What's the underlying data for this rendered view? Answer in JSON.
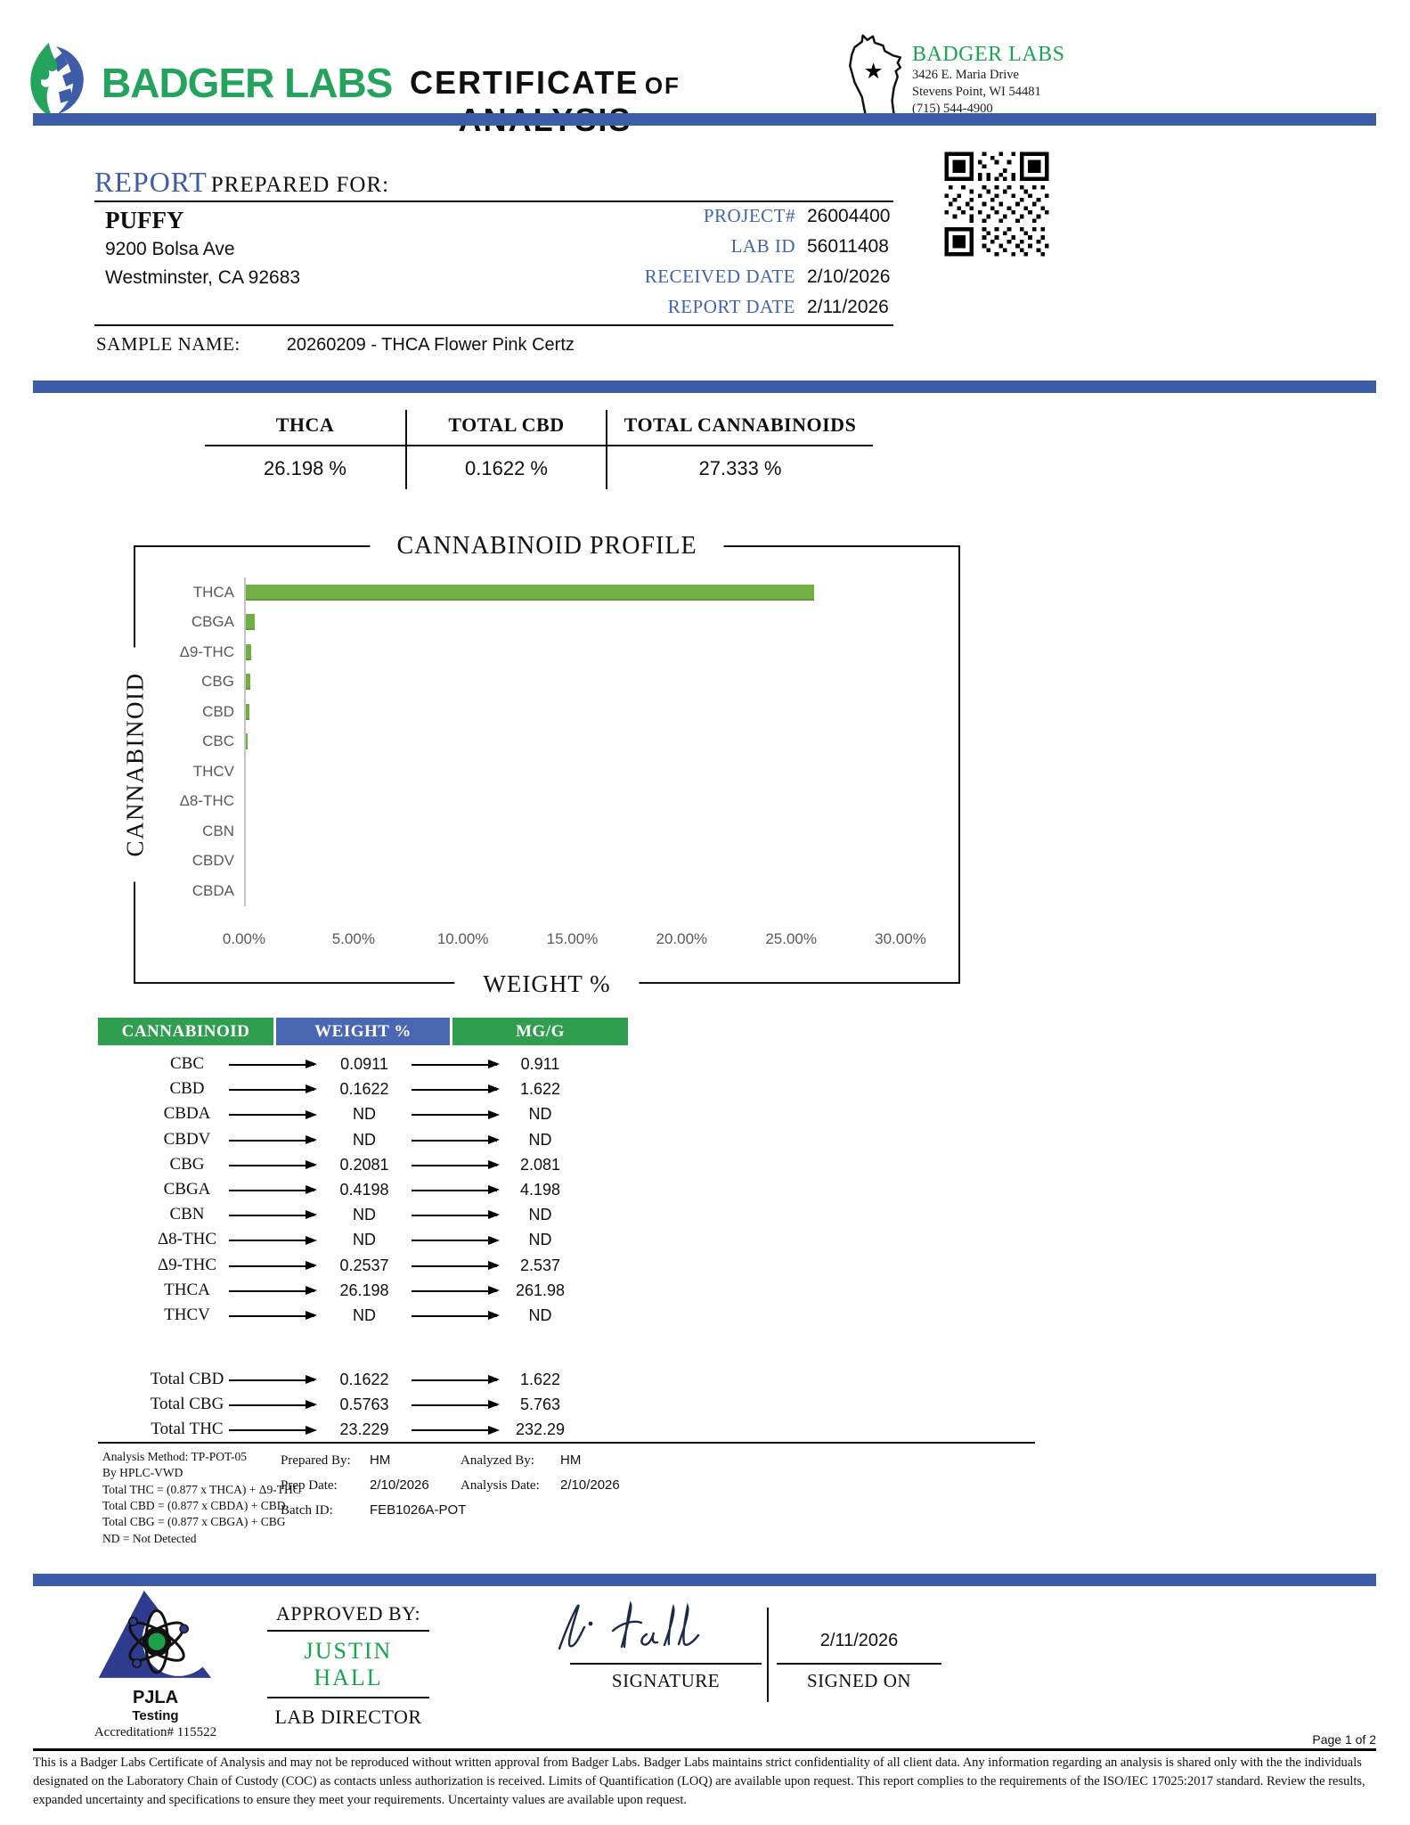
{
  "colors": {
    "accent_blue": "#3e5da8",
    "field_label_blue": "#4263ae",
    "brand_green": "#23a35b",
    "table_header_green": "#2f9e4f",
    "table_header_blue": "#4a68b2",
    "bar_green": "#71ae43",
    "approver_green": "#18a34f"
  },
  "header": {
    "brand": "BADGER LABS",
    "title_word1": "CERTIFICATE",
    "title_of": "OF",
    "title_word2": "ANALYSIS",
    "wisconsin_star": "★",
    "lab": {
      "name": "BADGER LABS",
      "address_line1": "3426 E. Maria Drive",
      "address_line2": "Stevens Point, WI 54481",
      "phone": "(715) 544-4900"
    }
  },
  "report": {
    "heading_accent": "REPORT",
    "heading_rest": " PREPARED FOR:",
    "client": {
      "name": "PUFFY",
      "address_line1": "9200 Bolsa Ave",
      "address_line2": "Westminster, CA 92683"
    },
    "fields": [
      {
        "label": "PROJECT#",
        "value": "26004400"
      },
      {
        "label": "LAB ID",
        "value": "56011408"
      },
      {
        "label": "RECEIVED DATE",
        "value": "2/10/2026"
      },
      {
        "label": "REPORT DATE",
        "value": "2/11/2026"
      }
    ],
    "sample_label": "SAMPLE NAME:",
    "sample_value": "20260209 - THCA Flower Pink Certz"
  },
  "summary": {
    "columns": [
      {
        "label": "THCA",
        "value": "26.198 %"
      },
      {
        "label": "TOTAL CBD",
        "value": "0.1622 %"
      },
      {
        "label": "TOTAL CANNABINOIDS",
        "value": "27.333 %"
      }
    ]
  },
  "chart_data": {
    "type": "bar",
    "orientation": "horizontal",
    "title": "CANNABINOID PROFILE",
    "xlabel": "WEIGHT %",
    "ylabel": "CANNABINOID",
    "categories": [
      "THCA",
      "CBGA",
      "Δ9-THC",
      "CBG",
      "CBD",
      "CBC",
      "THCV",
      "Δ8-THC",
      "CBN",
      "CBDV",
      "CBDA"
    ],
    "values": [
      26.198,
      0.4198,
      0.2537,
      0.2081,
      0.1622,
      0.0911,
      0,
      0,
      0,
      0,
      0
    ],
    "nd_categories": [
      "THCV",
      "Δ8-THC",
      "CBN",
      "CBDV",
      "CBDA"
    ],
    "xlim": [
      0,
      30
    ],
    "x_ticks": [
      "0.00%",
      "5.00%",
      "10.00%",
      "15.00%",
      "20.00%",
      "25.00%",
      "30.00%"
    ],
    "grid": false,
    "legend": false,
    "bar_color": "#71ae43"
  },
  "results_table": {
    "headers": [
      "CANNABINOID",
      "WEIGHT %",
      "MG/G"
    ],
    "rows": [
      {
        "name": "CBC",
        "weight": "0.0911",
        "mgg": "0.911"
      },
      {
        "name": "CBD",
        "weight": "0.1622",
        "mgg": "1.622"
      },
      {
        "name": "CBDA",
        "weight": "ND",
        "mgg": "ND"
      },
      {
        "name": "CBDV",
        "weight": "ND",
        "mgg": "ND"
      },
      {
        "name": "CBG",
        "weight": "0.2081",
        "mgg": "2.081"
      },
      {
        "name": "CBGA",
        "weight": "0.4198",
        "mgg": "4.198"
      },
      {
        "name": "CBN",
        "weight": "ND",
        "mgg": "ND"
      },
      {
        "name": "Δ8-THC",
        "weight": "ND",
        "mgg": "ND"
      },
      {
        "name": "Δ9-THC",
        "weight": "0.2537",
        "mgg": "2.537"
      },
      {
        "name": "THCA",
        "weight": "26.198",
        "mgg": "261.98"
      },
      {
        "name": "THCV",
        "weight": "ND",
        "mgg": "ND"
      }
    ],
    "totals": [
      {
        "name": "Total CBD",
        "weight": "0.1622",
        "mgg": "1.622"
      },
      {
        "name": "Total CBG",
        "weight": "0.5763",
        "mgg": "5.763"
      },
      {
        "name": "Total THC",
        "weight": "23.229",
        "mgg": "232.29"
      }
    ]
  },
  "methods": {
    "lines": [
      "Analysis Method: TP-POT-05",
      "By HPLC-VWD",
      "Total THC = (0.877 x  THCA) + Δ9-THC",
      "Total CBD = (0.877 x  CBDA) + CBD",
      "Total CBG = (0.877 x  CBGA) + CBG",
      "ND = Not Detected"
    ],
    "prepared_by_label": "Prepared By:",
    "prepared_by": "HM",
    "prep_date_label": "Prep Date:",
    "prep_date": "2/10/2026",
    "batch_id_label": "Batch ID:",
    "batch_id": "FEB1026A-POT",
    "analyzed_by_label": "Analyzed By:",
    "analyzed_by": "HM",
    "analysis_date_label": "Analysis Date:",
    "analysis_date": "2/10/2026"
  },
  "footer": {
    "pjla": {
      "name": "PJLA",
      "sub": "Testing",
      "accreditation": "Accreditation# 115522"
    },
    "approved_by_label": "APPROVED BY:",
    "approver_name": "JUSTIN HALL",
    "approver_title": "LAB DIRECTOR",
    "signature_label": "SIGNATURE",
    "signed_on_label": "SIGNED ON",
    "signed_date": "2/11/2026",
    "page_label": "Page 1 of 2",
    "disclaimer": "This is a Badger Labs Certificate of Analysis and may not be reproduced without written approval from Badger Labs. Badger Labs maintains strict confidentiality of all client data. Any information regarding an analysis is shared only with the the individuals designated on the Laboratory Chain of Custody (COC) as contacts unless authorization is received. Limits of Quantification (LOQ) are available upon request. This report complies to the requirements of the ISO/IEC 17025:2017 standard. Review the results, expanded uncertainty and specifications to ensure they meet your requirements. Uncertainty values are available upon request."
  }
}
